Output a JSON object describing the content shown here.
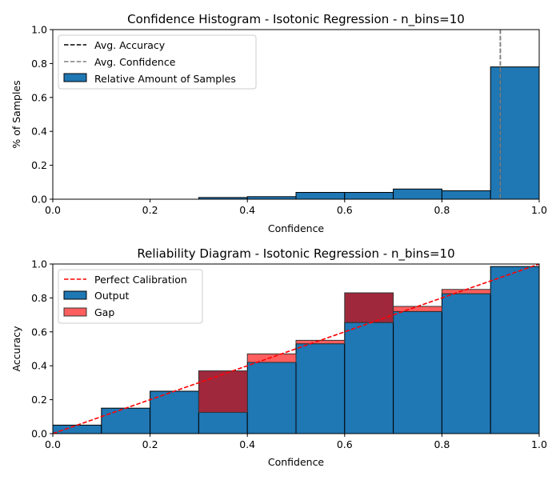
{
  "chart_data": [
    {
      "type": "bar",
      "title": "Confidence Histogram - Isotonic Regression - n_bins=10",
      "xlabel": "Confidence",
      "ylabel": "% of Samples",
      "xlim": [
        0,
        1
      ],
      "ylim": [
        0,
        1
      ],
      "xticks": [
        "0.0",
        "0.2",
        "0.4",
        "0.6",
        "0.8",
        "1.0"
      ],
      "yticks": [
        "0.0",
        "0.2",
        "0.4",
        "0.6",
        "0.8",
        "1.0"
      ],
      "bin_edges": [
        0.0,
        0.1,
        0.2,
        0.3,
        0.4,
        0.5,
        0.6,
        0.7,
        0.8,
        0.9,
        1.0
      ],
      "series": [
        {
          "name": "Relative Amount of Samples",
          "values": [
            0.0,
            0.0,
            0.0,
            0.01,
            0.015,
            0.04,
            0.04,
            0.06,
            0.05,
            0.78
          ],
          "color": "#1f77b4"
        }
      ],
      "lines": [
        {
          "name": "Avg. Accuracy",
          "x": 0.92,
          "style": "dashed",
          "color": "#000000"
        },
        {
          "name": "Avg. Confidence",
          "x": 0.92,
          "style": "dashed",
          "color": "#808080"
        }
      ],
      "legend": "top-left"
    },
    {
      "type": "bar",
      "title": "Reliability Diagram - Isotonic Regression - n_bins=10",
      "xlabel": "Confidence",
      "ylabel": "Accuracy",
      "xlim": [
        0,
        1
      ],
      "ylim": [
        0,
        1
      ],
      "xticks": [
        "0.0",
        "0.2",
        "0.4",
        "0.6",
        "0.8",
        "1.0"
      ],
      "yticks": [
        "0.0",
        "0.2",
        "0.4",
        "0.6",
        "0.8",
        "1.0"
      ],
      "bin_edges": [
        0.0,
        0.1,
        0.2,
        0.3,
        0.4,
        0.5,
        0.6,
        0.7,
        0.8,
        0.9,
        1.0
      ],
      "series": [
        {
          "name": "Output",
          "values": [
            0.05,
            0.15,
            0.25,
            0.125,
            0.42,
            0.53,
            0.655,
            0.72,
            0.825,
            0.985
          ],
          "color": "#1f77b4"
        },
        {
          "name": "Gap",
          "confidence": [
            0.05,
            0.15,
            0.25,
            0.37,
            0.47,
            0.55,
            0.83,
            0.75,
            0.85,
            0.985
          ],
          "color": "#ff5555"
        }
      ],
      "lines": [
        {
          "name": "Perfect Calibration",
          "x": [
            0,
            1
          ],
          "y": [
            0,
            1
          ],
          "style": "dashed",
          "color": "#ff0000"
        }
      ],
      "overlap_color": "#a0283c",
      "legend": "top-left"
    }
  ]
}
